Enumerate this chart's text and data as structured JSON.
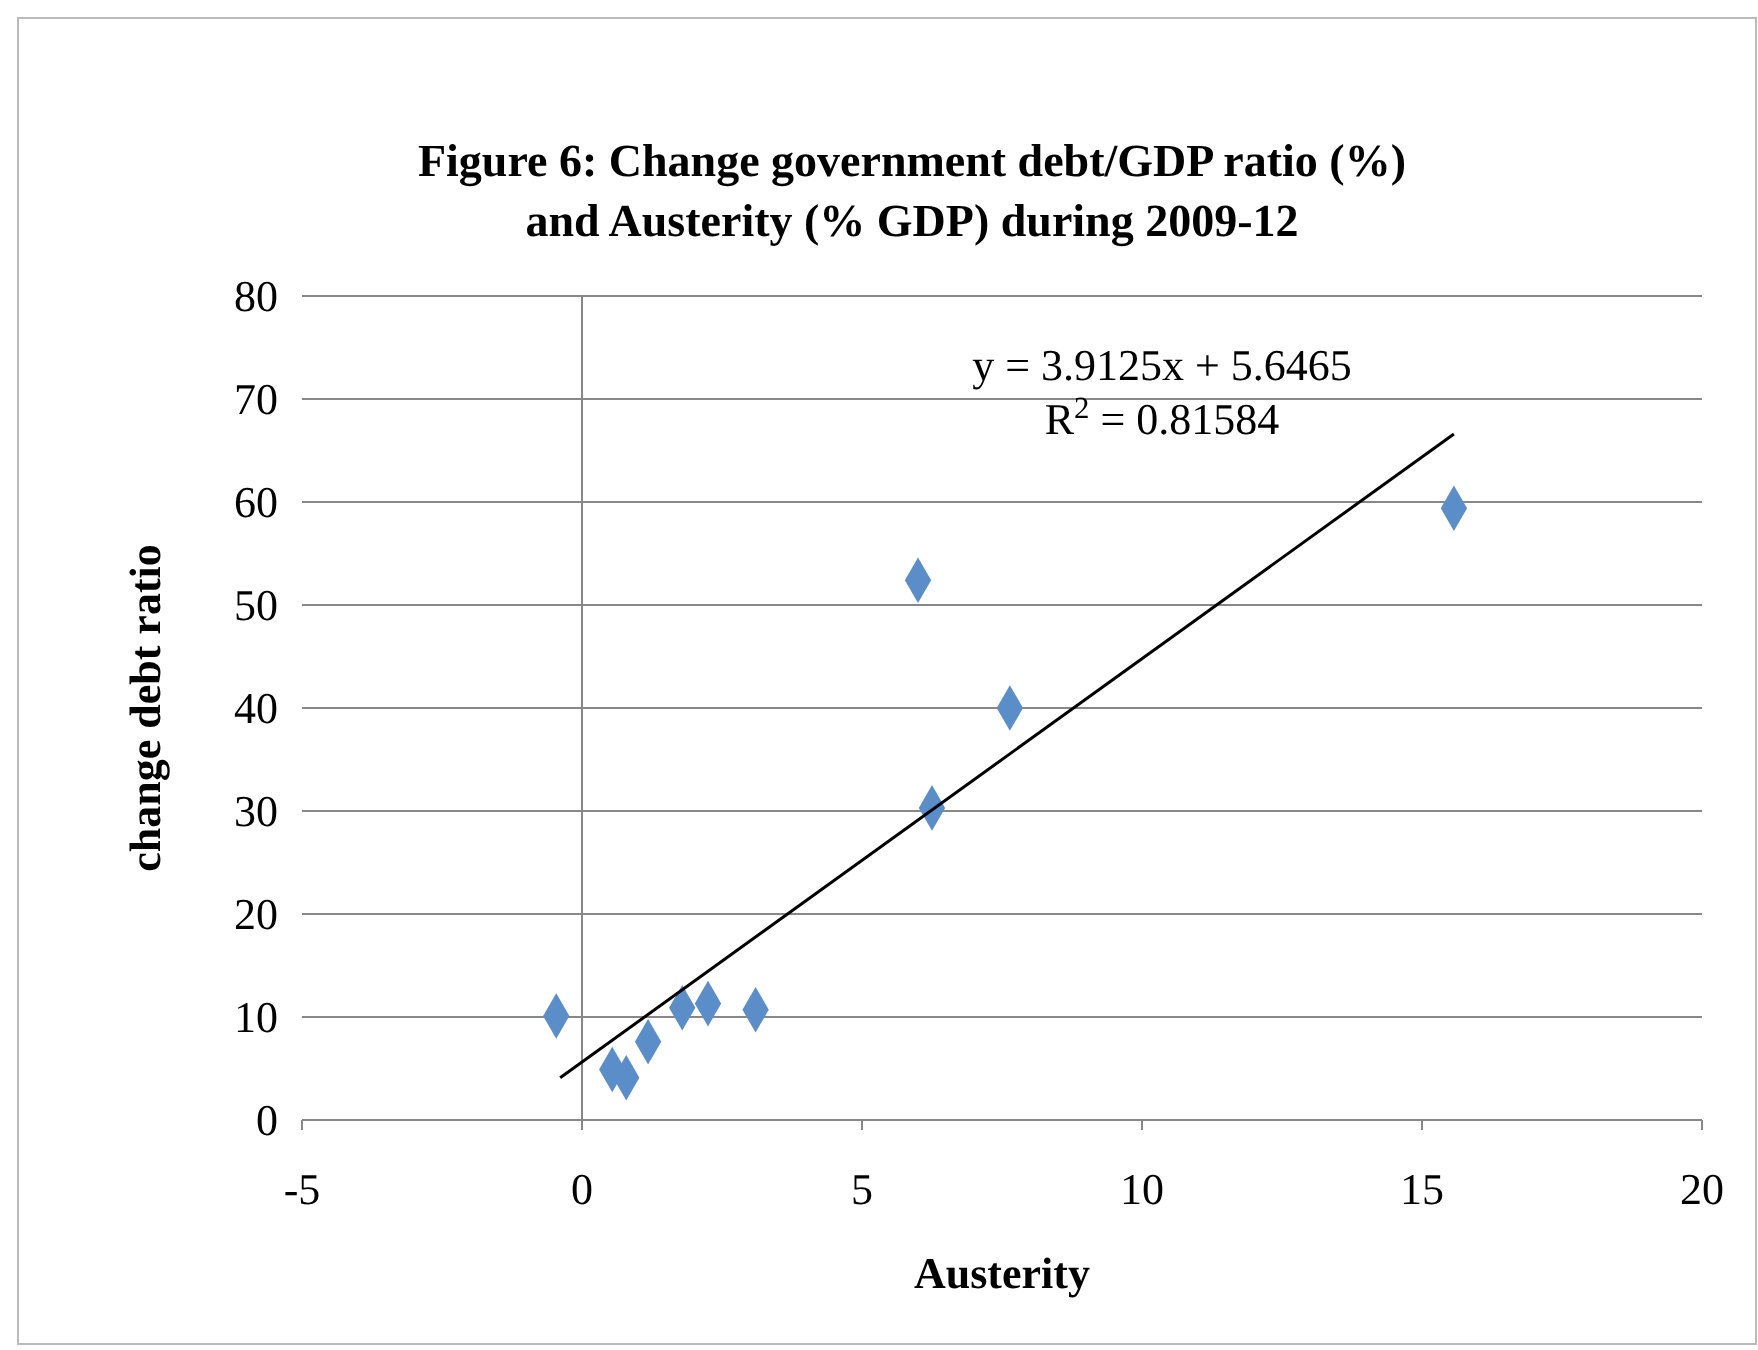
{
  "chart_data": {
    "type": "scatter",
    "title": "Figure 6: Change government debt/GDP ratio (%) and Austerity (% GDP)  during 2009-12",
    "xlabel": "Austerity",
    "ylabel": "change debt ratio",
    "series": [
      {
        "color": "#5b8ec9",
        "x": [
          -0.46,
          0.54,
          0.79,
          1.18,
          1.79,
          2.25,
          3.1,
          6.0,
          6.25,
          7.64,
          15.57
        ],
        "values": [
          10.1,
          4.9,
          4.1,
          7.6,
          10.9,
          11.3,
          10.7,
          52.4,
          30.3,
          40.0,
          59.4
        ],
        "marker": "diamond"
      },
      {
        "type": "line",
        "color": "#000000",
        "x": [
          -0.39,
          15.57
        ],
        "values": [
          4.1,
          66.6
        ],
        "marker": "none"
      }
    ],
    "annotations": [
      "y = 3.9125x + 5.6465",
      "R$^{2}$ = 0.81584"
    ],
    "ref_lines": [
      {
        "axis": "x",
        "value": 0,
        "color": "#888888"
      }
    ],
    "xlim": [
      -5,
      20
    ],
    "xticks": [
      -5,
      0,
      5,
      10,
      15,
      20
    ],
    "ylim": [
      0,
      80
    ],
    "yticks": [
      0,
      10,
      20,
      30,
      40,
      50,
      60,
      70,
      80
    ],
    "grid": "y"
  }
}
